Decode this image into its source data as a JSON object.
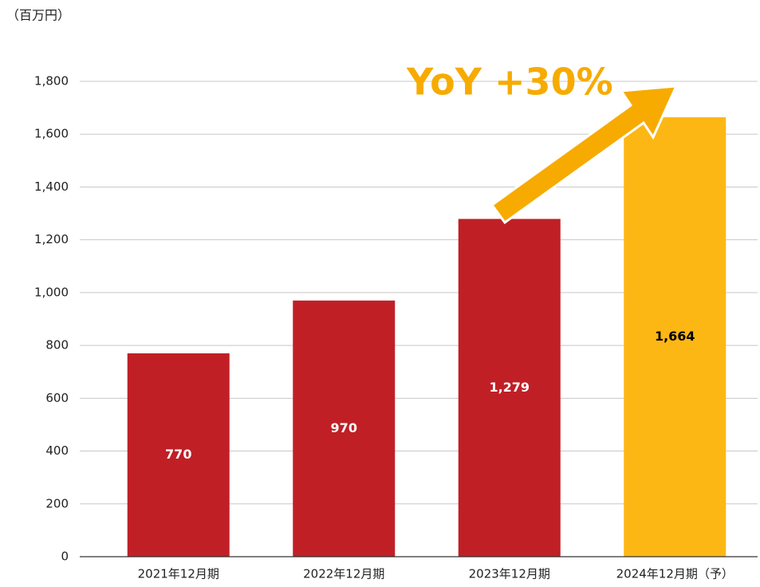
{
  "chart_data": {
    "type": "bar",
    "unit_label": "（百万円）",
    "annotation": "YoY +30%",
    "categories": [
      "2021年12月期",
      "2022年12月期",
      "2023年12月期",
      "2024年12月期（予）"
    ],
    "values": [
      770,
      970,
      1279,
      1664
    ],
    "value_labels": [
      "770",
      "970",
      "1,279",
      "1,664"
    ],
    "colors": [
      "#c01f26",
      "#c01f26",
      "#c01f26",
      "#fdb714"
    ],
    "value_label_colors": [
      "#ffffff",
      "#ffffff",
      "#ffffff",
      "#000000"
    ],
    "ylim": [
      0,
      1800
    ],
    "yticks": [
      0,
      200,
      400,
      600,
      800,
      {
        "value": 1000,
        "label": "1,000"
      },
      {
        "value": 1200,
        "label": "1,200"
      },
      {
        "value": 1400,
        "label": "1,400"
      },
      {
        "value": 1600,
        "label": "1,600"
      },
      {
        "value": 1800,
        "label": "1,800"
      }
    ],
    "grid": true
  }
}
